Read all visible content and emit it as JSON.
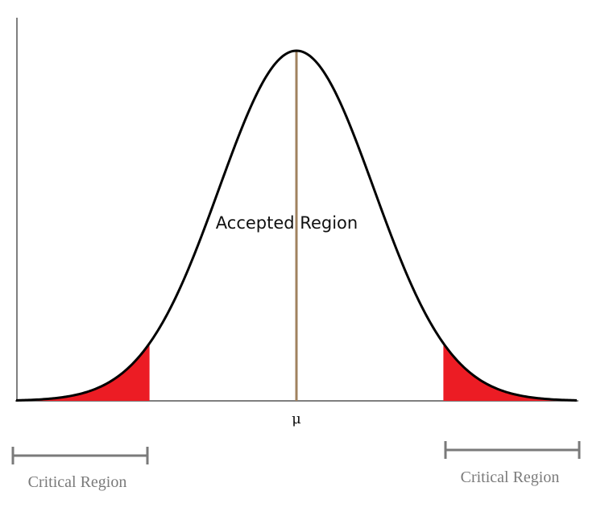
{
  "labels": {
    "accepted_region": "Accepted Region",
    "mean_symbol": "μ",
    "critical_region_left": "Critical Region",
    "critical_region_right": "Critical Region"
  },
  "colors": {
    "curve": "#000000",
    "critical_fill": "#ec1c24",
    "mean_line": "#a0825f",
    "axes": "#555555",
    "bracket": "#7a7a7a",
    "critical_text": "#7a7a7a"
  },
  "distribution": {
    "type": "normal",
    "critical_z": 1.9
  }
}
